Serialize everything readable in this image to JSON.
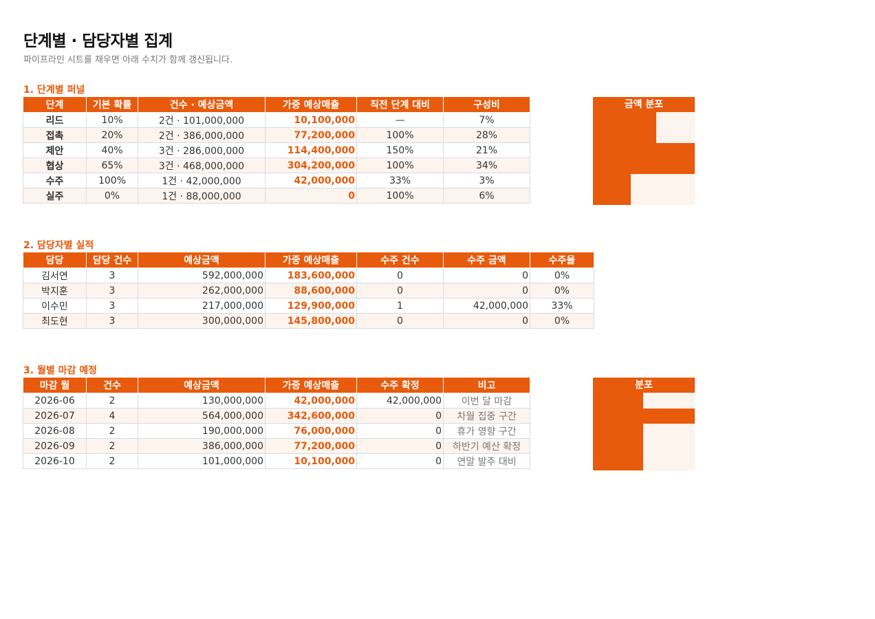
{
  "header": {
    "title": "단계별 · 담당자별 집계",
    "subtitle": "파이프라인 시트를 채우면 아래 수치가 함께 갱신됩니다."
  },
  "colors": {
    "accent": "#e85a0c",
    "alt_row": "#fdf4ee",
    "grid_border": "#d6dbe6"
  },
  "funnel": {
    "title": "1. 단계별 퍼널",
    "headers": [
      "단계",
      "기본 확률",
      "건수 · 예상금액",
      "가중 예상매출",
      "직전 단계 대비",
      "구성비"
    ],
    "rows": [
      [
        "리드",
        "10%",
        "2건 · 101,000,000",
        "10,100,000",
        "—",
        "7%"
      ],
      [
        "접촉",
        "20%",
        "2건 · 386,000,000",
        "77,200,000",
        "100%",
        "28%"
      ],
      [
        "제안",
        "40%",
        "3건 · 286,000,000",
        "114,400,000",
        "150%",
        "21%"
      ],
      [
        "협상",
        "65%",
        "3건 · 468,000,000",
        "304,200,000",
        "100%",
        "34%"
      ],
      [
        "수주",
        "100%",
        "1건 · 42,000,000",
        "42,000,000",
        "33%",
        "3%"
      ],
      [
        "실주",
        "0%",
        "1건 · 88,000,000",
        "0",
        "100%",
        "6%"
      ]
    ],
    "dist_title": "금액 분포",
    "dist_levels": [
      0.62,
      0.62,
      1.0,
      1.0,
      0.37,
      0.37
    ]
  },
  "owners": {
    "title": "2. 담당자별 실적",
    "headers": [
      "담당",
      "담당 건수",
      "예상금액",
      "가중 예상매출",
      "수주 건수",
      "수주 금액",
      "수주율"
    ],
    "rows": [
      [
        "김서연",
        "3",
        "592,000,000",
        "183,600,000",
        "0",
        "0",
        "0%"
      ],
      [
        "박지훈",
        "3",
        "262,000,000",
        "88,600,000",
        "0",
        "0",
        "0%"
      ],
      [
        "이수민",
        "3",
        "217,000,000",
        "129,900,000",
        "1",
        "42,000,000",
        "33%"
      ],
      [
        "최도현",
        "3",
        "300,000,000",
        "145,800,000",
        "0",
        "0",
        "0%"
      ]
    ]
  },
  "monthly": {
    "title": "3. 월별 마감 예정",
    "headers": [
      "마감 월",
      "건수",
      "예상금액",
      "가중 예상매출",
      "수주 확정",
      "비고"
    ],
    "rows": [
      [
        "2026-06",
        "2",
        "130,000,000",
        "42,000,000",
        "42,000,000",
        "이번 달 마감"
      ],
      [
        "2026-07",
        "4",
        "564,000,000",
        "342,600,000",
        "0",
        "차월 집중 구간"
      ],
      [
        "2026-08",
        "2",
        "190,000,000",
        "76,000,000",
        "0",
        "휴가 영향 구간"
      ],
      [
        "2026-09",
        "2",
        "386,000,000",
        "77,200,000",
        "0",
        "하반기 예산 확정"
      ],
      [
        "2026-10",
        "2",
        "101,000,000",
        "10,100,000",
        "0",
        "연말 발주 대비"
      ]
    ],
    "dist_title": "분포",
    "dist_levels": [
      0.49,
      1.0,
      0.49,
      0.49,
      0.49
    ]
  }
}
